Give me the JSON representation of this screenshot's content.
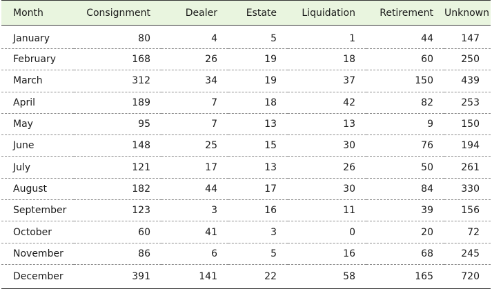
{
  "chart_data": {
    "type": "table",
    "columns": [
      "Month",
      "Consignment",
      "Dealer",
      "Estate",
      "Liquidation",
      "Retirement",
      "Unknown"
    ],
    "rows": [
      [
        "January",
        80,
        4,
        5,
        1,
        44,
        147
      ],
      [
        "February",
        168,
        26,
        19,
        18,
        60,
        250
      ],
      [
        "March",
        312,
        34,
        19,
        37,
        150,
        439
      ],
      [
        "April",
        189,
        7,
        18,
        42,
        82,
        253
      ],
      [
        "May",
        95,
        7,
        13,
        13,
        9,
        150
      ],
      [
        "June",
        148,
        25,
        15,
        30,
        76,
        194
      ],
      [
        "July",
        121,
        17,
        13,
        26,
        50,
        261
      ],
      [
        "August",
        182,
        44,
        17,
        30,
        84,
        330
      ],
      [
        "September",
        123,
        3,
        16,
        11,
        39,
        156
      ],
      [
        "October",
        60,
        41,
        3,
        0,
        20,
        72
      ],
      [
        "November",
        86,
        6,
        5,
        16,
        68,
        245
      ],
      [
        "December",
        391,
        141,
        22,
        58,
        165,
        720
      ]
    ]
  },
  "colors": {
    "header_background": "#e9f5df",
    "rule": "#333333",
    "row_divider": "#8c8c8c"
  }
}
